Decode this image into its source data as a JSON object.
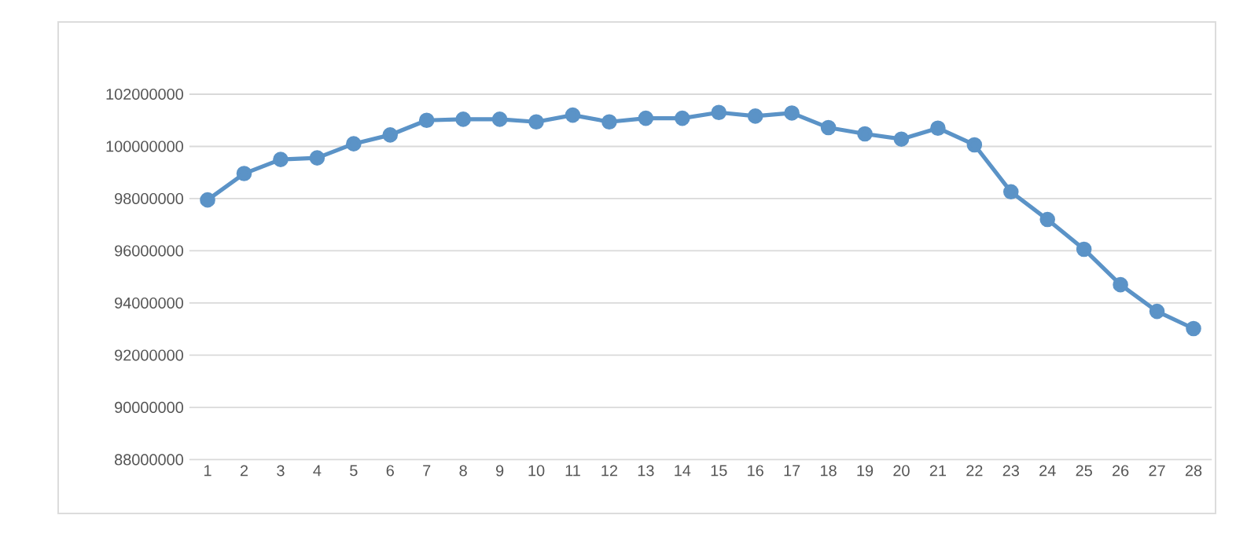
{
  "chart_data": {
    "type": "line",
    "categories": [
      "1",
      "2",
      "3",
      "4",
      "5",
      "6",
      "7",
      "8",
      "9",
      "10",
      "11",
      "12",
      "13",
      "14",
      "15",
      "16",
      "17",
      "18",
      "19",
      "20",
      "21",
      "22",
      "23",
      "24",
      "25",
      "26",
      "27",
      "28"
    ],
    "series": [
      {
        "color": "#5b93c7",
        "values": [
          97950000,
          98960000,
          99500000,
          99560000,
          100100000,
          100440000,
          101000000,
          101040000,
          101040000,
          100940000,
          101200000,
          100940000,
          101080000,
          101080000,
          101300000,
          101160000,
          101280000,
          100720000,
          100480000,
          100280000,
          100700000,
          100060000,
          98260000,
          97200000,
          96060000,
          94700000,
          93680000,
          93020000
        ]
      }
    ],
    "ylim": [
      88000000,
      102000000
    ],
    "yticks": [
      88000000,
      90000000,
      92000000,
      94000000,
      96000000,
      98000000,
      100000000,
      102000000
    ],
    "grid": "y",
    "marker": "circle",
    "line_style": "solid"
  }
}
